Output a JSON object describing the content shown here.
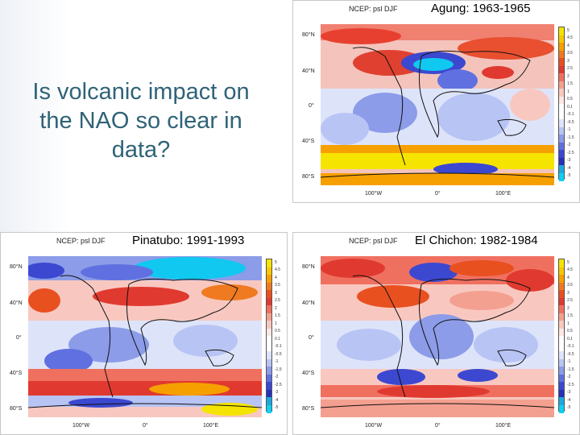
{
  "slide": {
    "question": "Is volcanic impact on the NAO so clear in data?"
  },
  "panels": [
    {
      "id": "agung",
      "header": "NCEP: psl DJF",
      "title": "Agung: 1963-1965"
    },
    {
      "id": "pinatubo",
      "header": "NCEP: psl DJF",
      "title": "Pinatubo: 1991-1993"
    },
    {
      "id": "elchichon",
      "header": "NCEP: psl DJF",
      "title": "El Chichon: 1982-1984"
    }
  ],
  "map_axes": {
    "lat_labels": [
      "80°N",
      "40°N",
      "0°",
      "40°S",
      "80°S"
    ],
    "lon_labels": [
      "100°W",
      "0°",
      "100°E"
    ]
  },
  "colorbar": {
    "labels": [
      "5",
      "4.5",
      "4",
      "3.5",
      "3",
      "2.5",
      "2",
      "1.5",
      "1",
      "0.5",
      "0.1",
      "-0.1",
      "-0.5",
      "-1",
      "-1.5",
      "-2",
      "-2.5",
      "-3",
      "-4",
      "-5"
    ],
    "colors": [
      "#f5e400",
      "#f8c800",
      "#f6a000",
      "#f07a20",
      "#e85020",
      "#e03a30",
      "#f07060",
      "#f4a090",
      "#f8c8c0",
      "#fce8e4",
      "#ffffff",
      "#ffffff",
      "#dde4fa",
      "#b8c4f4",
      "#8c9ce8",
      "#6070e0",
      "#3c48d0",
      "#2830b8",
      "#1ca8e0",
      "#10d0f0"
    ]
  }
}
